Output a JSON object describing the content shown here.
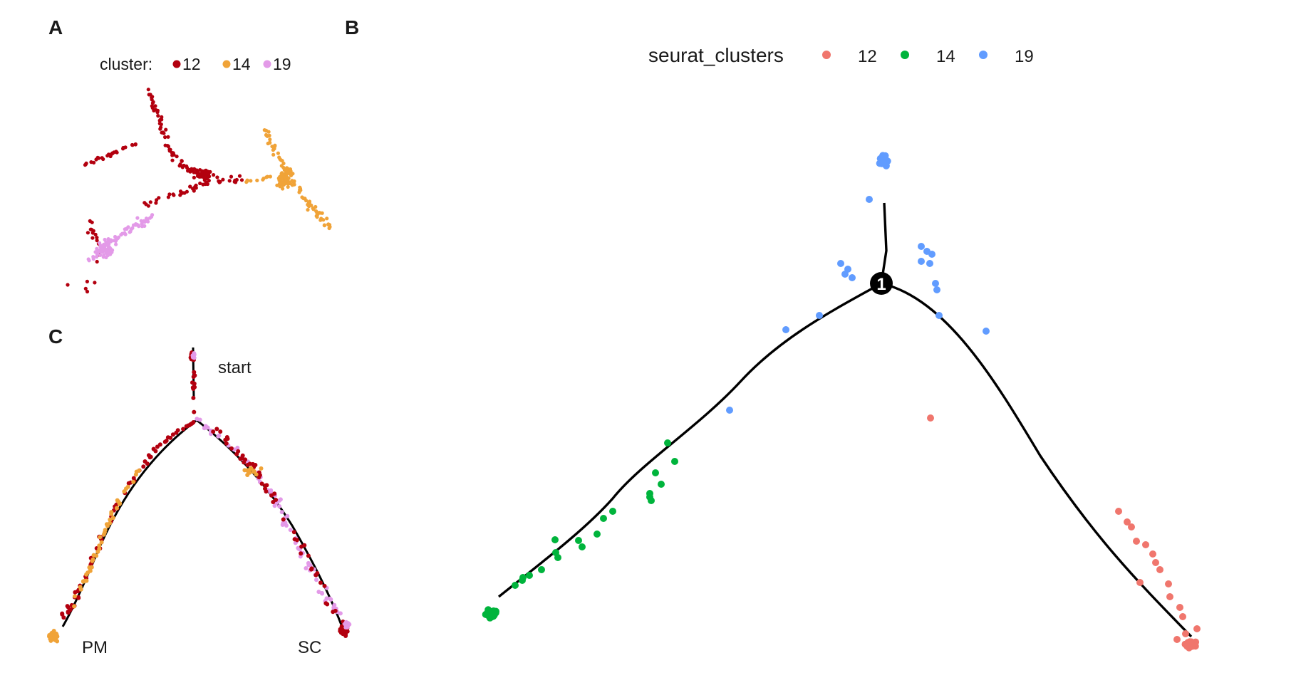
{
  "panels": {
    "A": {
      "label": "A",
      "legend_title": "cluster:",
      "legend_entries": [
        {
          "label": "12",
          "color": "#b3000f"
        },
        {
          "label": "14",
          "color": "#f0a338"
        },
        {
          "label": "19",
          "color": "#e39ae8"
        }
      ]
    },
    "B": {
      "label": "B",
      "legend_title": "seurat_clusters",
      "legend_entries": [
        {
          "label": "12",
          "color": "#f0766d"
        },
        {
          "label": "14",
          "color": "#00b43c"
        },
        {
          "label": "19",
          "color": "#619cff"
        }
      ],
      "branch_node_label": "1"
    },
    "C": {
      "label": "C",
      "annotations": {
        "start": "start",
        "pm": "PM",
        "sc": "SC"
      }
    }
  },
  "chart_data": [
    {
      "panel": "A",
      "type": "scatter",
      "title": "",
      "xlabel": "",
      "ylabel": "",
      "axes_visible": false,
      "legend_placement": "top",
      "series": [
        {
          "name": "12",
          "color": "#b3000f",
          "approx_point_count": 230
        },
        {
          "name": "14",
          "color": "#f0a338",
          "approx_point_count": 160
        },
        {
          "name": "19",
          "color": "#e39ae8",
          "approx_point_count": 110
        }
      ]
    },
    {
      "panel": "B",
      "type": "scatter",
      "subtype": "trajectory",
      "title": "",
      "xlabel": "",
      "ylabel": "",
      "axes_visible": false,
      "legend_placement": "top",
      "branch_points": [
        "1"
      ],
      "series": [
        {
          "name": "12",
          "color": "#f0766d",
          "approx_point_count": 60
        },
        {
          "name": "14",
          "color": "#00b43c",
          "approx_point_count": 75
        },
        {
          "name": "19",
          "color": "#619cff",
          "approx_point_count": 45
        }
      ]
    },
    {
      "panel": "C",
      "type": "scatter",
      "subtype": "trajectory",
      "title": "",
      "xlabel": "",
      "ylabel": "",
      "axes_visible": false,
      "branch_labels": [
        "start",
        "PM",
        "SC"
      ],
      "series": [
        {
          "name": "12",
          "color": "#b3000f"
        },
        {
          "name": "14",
          "color": "#f0a338"
        },
        {
          "name": "19",
          "color": "#e39ae8"
        }
      ]
    }
  ]
}
